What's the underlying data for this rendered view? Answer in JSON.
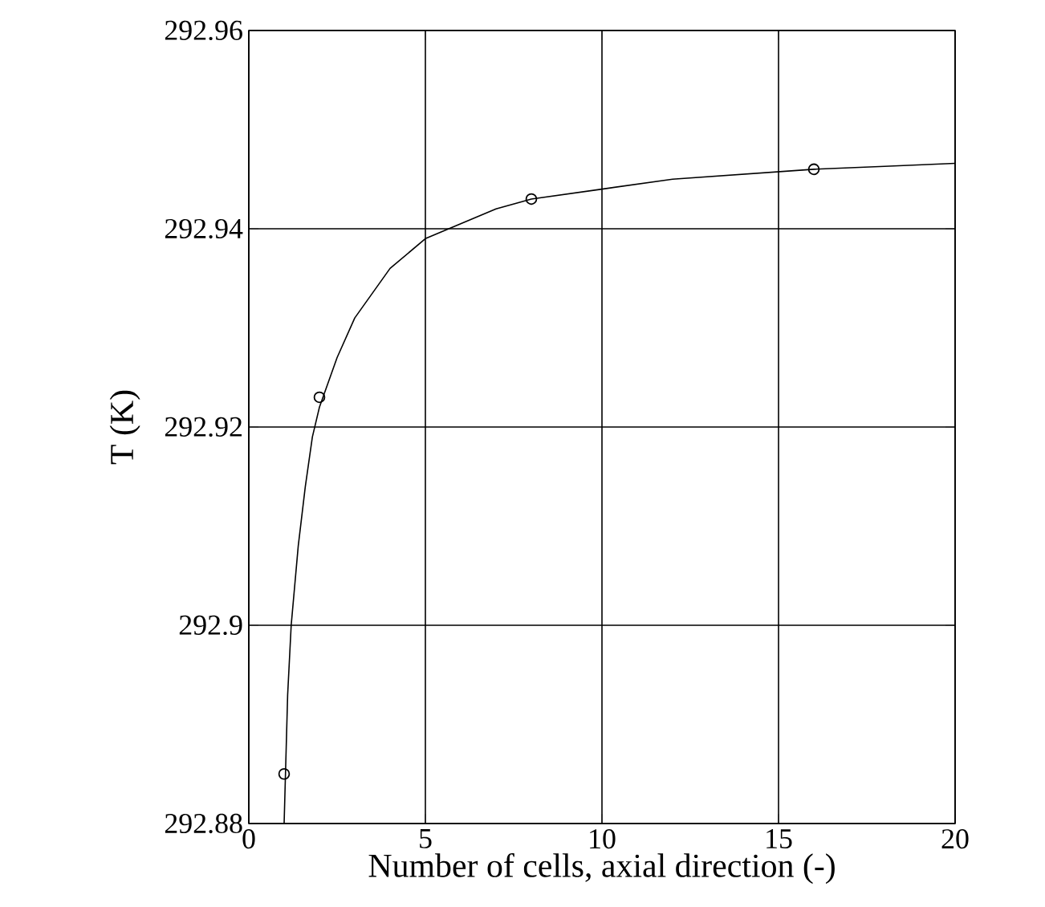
{
  "chart_data": {
    "type": "scatter",
    "xlabel": "Number of cells, axial direction (-)",
    "ylabel": "T (K)",
    "xlim": [
      0,
      20
    ],
    "ylim": [
      292.88,
      292.96
    ],
    "xticks": [
      0,
      5,
      10,
      15,
      20
    ],
    "yticks": [
      292.88,
      292.9,
      292.92,
      292.94,
      292.96
    ],
    "grid": true,
    "series": [
      {
        "marker": "circle",
        "color": "#000000",
        "x": [
          1,
          2,
          8,
          16
        ],
        "values": [
          292.885,
          292.923,
          292.943,
          292.946
        ]
      },
      {
        "type": "line",
        "marker": "none",
        "line_style": "solid",
        "color": "#000000",
        "x": [
          1.0,
          1.1,
          1.2,
          1.4,
          1.6,
          1.8,
          2,
          2.5,
          3,
          4,
          5,
          6,
          7,
          8,
          10,
          12,
          14,
          16,
          18,
          20
        ],
        "values": [
          292.88,
          292.893,
          292.9,
          292.908,
          292.914,
          292.919,
          292.922,
          292.927,
          292.931,
          292.936,
          292.939,
          292.9405,
          292.942,
          292.943,
          292.944,
          292.945,
          292.9455,
          292.946,
          292.9463,
          292.9466
        ]
      }
    ]
  }
}
